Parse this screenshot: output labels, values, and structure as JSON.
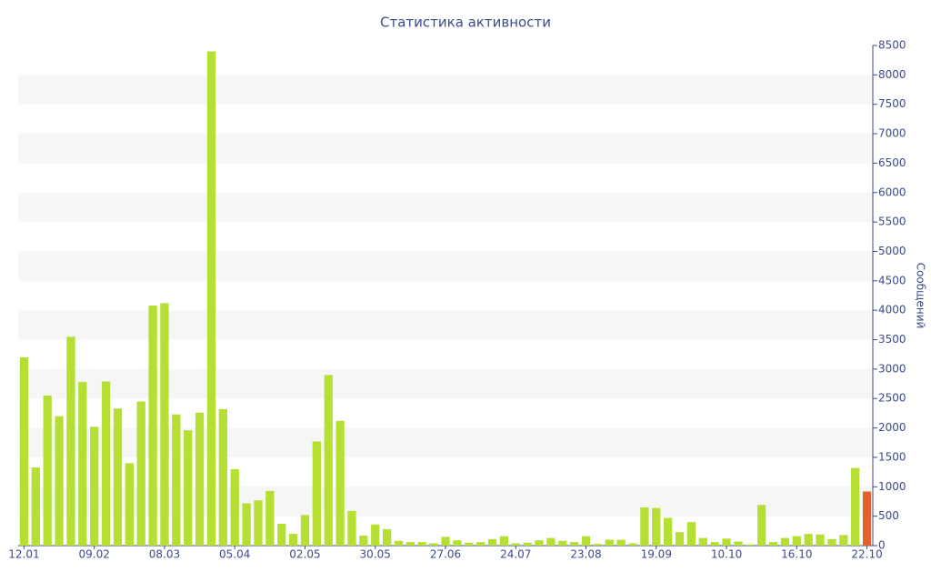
{
  "chart_data": {
    "type": "bar",
    "title": "Статистика активности",
    "y_label": "Сообщений",
    "categories": [
      "12.01",
      null,
      null,
      null,
      null,
      null,
      "09.02",
      null,
      null,
      null,
      null,
      null,
      "08.03",
      null,
      null,
      null,
      null,
      null,
      "05.04",
      null,
      null,
      null,
      null,
      null,
      "02.05",
      null,
      null,
      null,
      null,
      null,
      "30.05",
      null,
      null,
      null,
      null,
      null,
      "27.06",
      null,
      null,
      null,
      null,
      null,
      "24.07",
      null,
      null,
      null,
      null,
      null,
      "23.08",
      null,
      null,
      null,
      null,
      null,
      "19.09",
      null,
      null,
      null,
      null,
      null,
      "10.10",
      null,
      null,
      null,
      null,
      null,
      "16.10",
      null,
      null,
      null,
      null,
      null,
      "22.10"
    ],
    "values": [
      3200,
      1330,
      2550,
      2200,
      3550,
      2780,
      2020,
      2790,
      2330,
      1400,
      2450,
      4080,
      4120,
      2230,
      1960,
      2260,
      8400,
      2320,
      1300,
      720,
      770,
      930,
      370,
      200,
      520,
      1770,
      2900,
      2120,
      590,
      170,
      360,
      280,
      80,
      60,
      60,
      40,
      150,
      90,
      50,
      60,
      110,
      160,
      40,
      50,
      90,
      130,
      80,
      60,
      160,
      30,
      100,
      100,
      40,
      650,
      640,
      470,
      230,
      400,
      130,
      60,
      120,
      70,
      20,
      690,
      60,
      130,
      160,
      200,
      190,
      110,
      180,
      1320,
      920
    ],
    "color": "#b5e033",
    "highlight": {
      "index": 72,
      "color": "#e4622a"
    },
    "ylim": [
      0,
      8500
    ],
    "yticks": [
      0,
      500,
      1000,
      1500,
      2000,
      2500,
      3000,
      3500,
      4000,
      4500,
      5000,
      5500,
      6000,
      6500,
      7000,
      7500,
      8000,
      8500
    ],
    "y_axis_side": "right",
    "banded_grid": true
  }
}
